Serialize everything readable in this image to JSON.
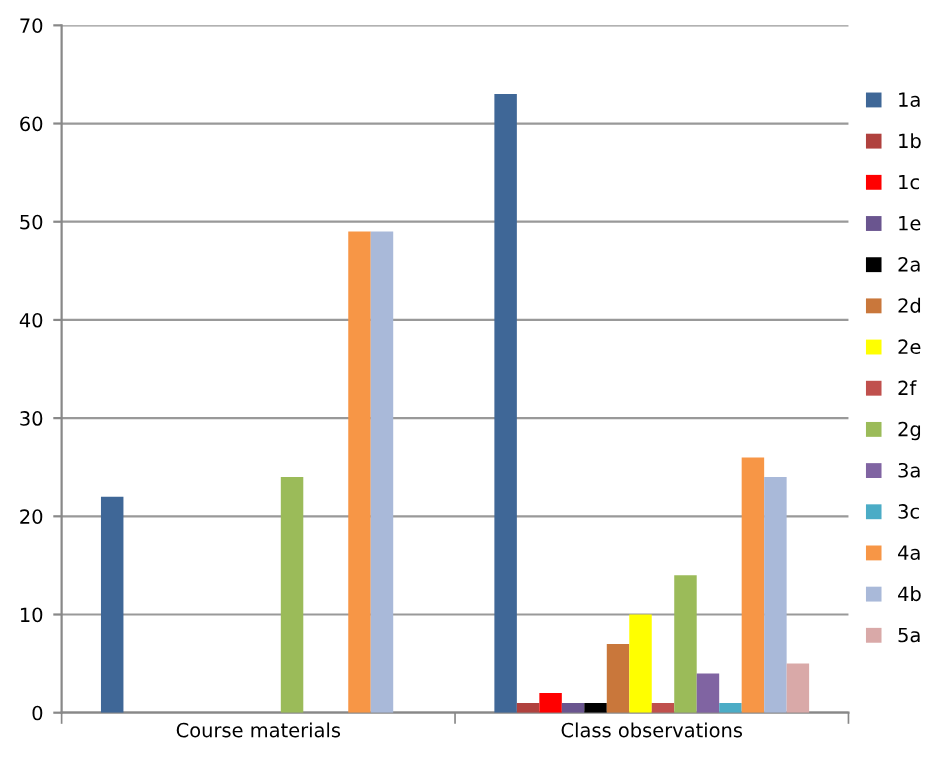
{
  "chart_data": {
    "type": "bar",
    "categories": [
      "Course materials",
      "Class observations"
    ],
    "series": [
      {
        "name": "1a",
        "color": "#3f6797",
        "values": [
          22,
          63
        ]
      },
      {
        "name": "1b",
        "color": "#b0413e",
        "values": [
          null,
          1
        ]
      },
      {
        "name": "1c",
        "color": "#ff0000",
        "values": [
          null,
          2
        ]
      },
      {
        "name": "1e",
        "color": "#6a558f",
        "values": [
          null,
          1
        ]
      },
      {
        "name": "2a",
        "color": "#000000",
        "values": [
          null,
          1
        ]
      },
      {
        "name": "2d",
        "color": "#c9773b",
        "values": [
          null,
          7
        ]
      },
      {
        "name": "2e",
        "color": "#ffff00",
        "values": [
          null,
          10
        ]
      },
      {
        "name": "2f",
        "color": "#c0504d",
        "values": [
          null,
          1
        ]
      },
      {
        "name": "2g",
        "color": "#9bbb59",
        "values": [
          24,
          14
        ]
      },
      {
        "name": "3a",
        "color": "#8064a2",
        "values": [
          null,
          4
        ]
      },
      {
        "name": "3c",
        "color": "#4bacc6",
        "values": [
          null,
          1
        ]
      },
      {
        "name": "4a",
        "color": "#f79646",
        "values": [
          49,
          26
        ]
      },
      {
        "name": "4b",
        "color": "#a9b9d9",
        "values": [
          49,
          24
        ]
      },
      {
        "name": "5a",
        "color": "#d9a9a8",
        "values": [
          null,
          5
        ]
      }
    ],
    "ylim": [
      0,
      70
    ],
    "yticks": [
      0,
      10,
      20,
      30,
      40,
      50,
      60,
      70
    ],
    "grid": "y",
    "legend": "right"
  }
}
